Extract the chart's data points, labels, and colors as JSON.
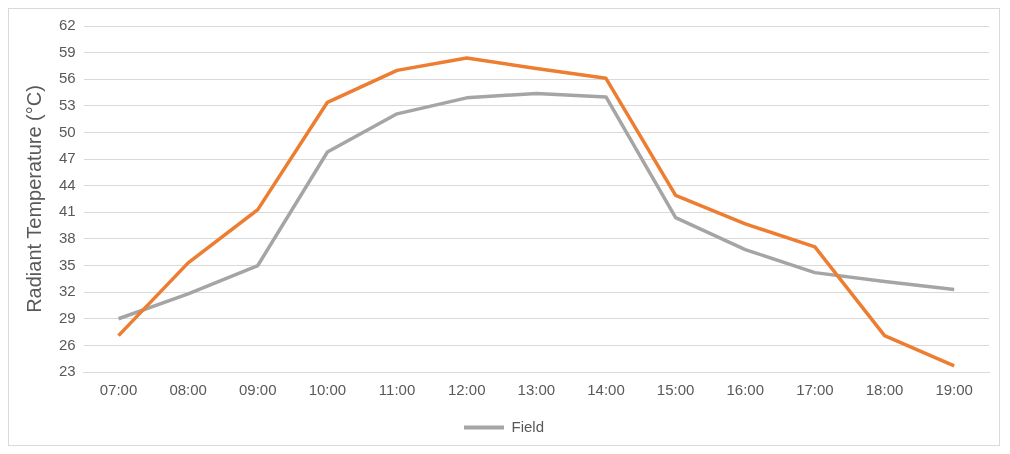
{
  "chart_data": {
    "type": "line",
    "ylabel": "Radiant Temperature (°C)",
    "categories": [
      "07:00",
      "08:00",
      "09:00",
      "10:00",
      "11:00",
      "12:00",
      "13:00",
      "14:00",
      "15:00",
      "16:00",
      "17:00",
      "18:00",
      "19:00"
    ],
    "series": [
      {
        "color": "#ed7d31",
        "values": [
          27.1,
          35.3,
          41.3,
          53.4,
          57,
          58.4,
          57.2,
          56.1,
          42.9,
          39.7,
          37.1,
          27.1,
          23.7
        ]
      },
      {
        "name": "Field",
        "color": "#a5a5a5",
        "values": [
          29,
          31.8,
          35,
          47.8,
          52.1,
          53.9,
          54.4,
          54,
          40.4,
          36.8,
          34.2,
          33.2,
          32.3
        ]
      }
    ],
    "ylim": [
      23,
      62
    ],
    "yticks": [
      23,
      26,
      29,
      32,
      35,
      38,
      41,
      44,
      47,
      50,
      53,
      56,
      59,
      62
    ],
    "grid": "y",
    "legend": "bottom",
    "marker": "none",
    "line_style": "solid"
  }
}
